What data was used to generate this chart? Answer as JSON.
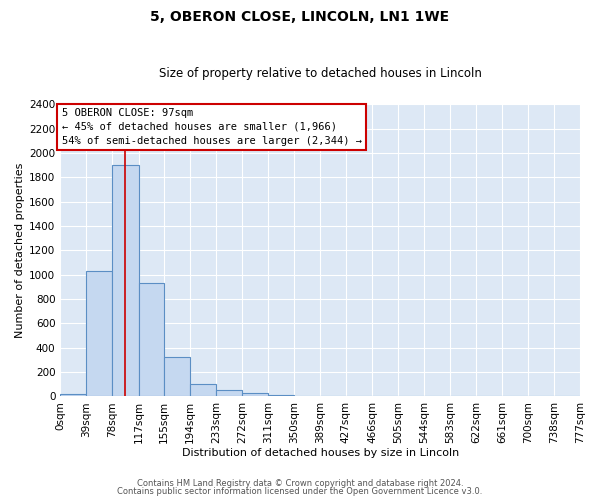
{
  "title": "5, OBERON CLOSE, LINCOLN, LN1 1WE",
  "subtitle": "Size of property relative to detached houses in Lincoln",
  "xlabel": "Distribution of detached houses by size in Lincoln",
  "ylabel": "Number of detached properties",
  "bar_color": "#c5d8f0",
  "bar_edge_color": "#5b8ec4",
  "background_color": "#dde8f5",
  "grid_color": "#ffffff",
  "annotation_box_color": "#ffffff",
  "annotation_box_edge": "#cc0000",
  "redline_color": "#cc0000",
  "annotation_title": "5 OBERON CLOSE: 97sqm",
  "annotation_line1": "← 45% of detached houses are smaller (1,966)",
  "annotation_line2": "54% of semi-detached houses are larger (2,344) →",
  "property_size": 97,
  "bin_edges": [
    0,
    39,
    78,
    117,
    155,
    194,
    233,
    272,
    311,
    350,
    389,
    427,
    466,
    505,
    544,
    583,
    622,
    661,
    700,
    738,
    777
  ],
  "bin_counts": [
    20,
    1030,
    1900,
    930,
    320,
    100,
    55,
    30,
    15,
    0,
    0,
    0,
    0,
    0,
    0,
    0,
    0,
    0,
    0,
    0
  ],
  "ylim": [
    0,
    2400
  ],
  "yticks": [
    0,
    200,
    400,
    600,
    800,
    1000,
    1200,
    1400,
    1600,
    1800,
    2000,
    2200,
    2400
  ],
  "xtick_labels": [
    "0sqm",
    "39sqm",
    "78sqm",
    "117sqm",
    "155sqm",
    "194sqm",
    "233sqm",
    "272sqm",
    "311sqm",
    "350sqm",
    "389sqm",
    "427sqm",
    "466sqm",
    "505sqm",
    "544sqm",
    "583sqm",
    "622sqm",
    "661sqm",
    "700sqm",
    "738sqm",
    "777sqm"
  ],
  "footer1": "Contains HM Land Registry data © Crown copyright and database right 2024.",
  "footer2": "Contains public sector information licensed under the Open Government Licence v3.0."
}
